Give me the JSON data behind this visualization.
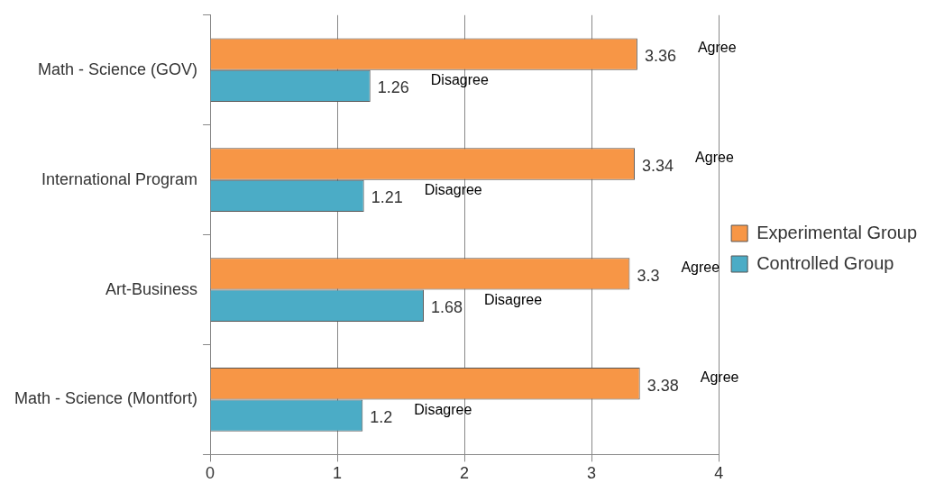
{
  "chart_data": {
    "type": "bar",
    "orientation": "horizontal",
    "categories": [
      "Math - Science (GOV)",
      "International Program",
      "Art-Business",
      "Math - Science (Montfort)"
    ],
    "series": [
      {
        "name": "Experimental Group",
        "color": "#f79646",
        "values": [
          3.36,
          3.34,
          3.3,
          3.38
        ]
      },
      {
        "name": "Controlled Group",
        "color": "#4bacc6",
        "values": [
          1.26,
          1.21,
          1.68,
          1.2
        ]
      }
    ],
    "xlim": [
      0,
      4
    ],
    "xticks": [
      0,
      1,
      2,
      3,
      4
    ],
    "grid": "x",
    "legend": "right",
    "data_labels": true,
    "annotations": [
      "Agree",
      "Disagree",
      "Agree",
      "Disagree",
      "Agree",
      "Disagree",
      "Agree",
      "Disagree"
    ]
  }
}
